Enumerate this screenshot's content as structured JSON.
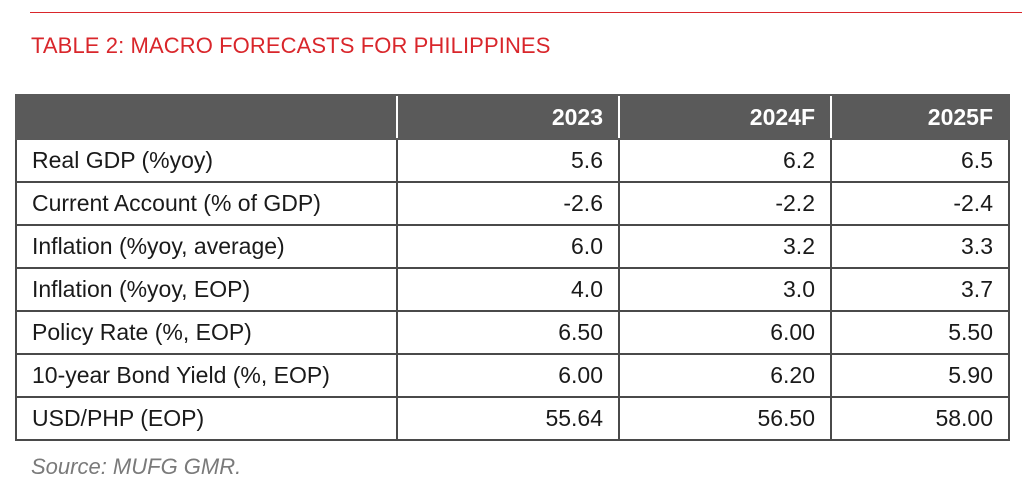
{
  "document": {
    "title": "TABLE 2: MACRO FORECASTS FOR PHILIPPINES",
    "source": "Source: MUFG GMR.",
    "accent_color": "#d9262b",
    "header_bg_color": "#5a5a5a"
  },
  "table": {
    "header": {
      "label": "",
      "years": [
        "2023",
        "2024F",
        "2025F"
      ]
    },
    "rows": [
      {
        "label": "Real GDP (%yoy)",
        "values": [
          "5.6",
          "6.2",
          "6.5"
        ]
      },
      {
        "label": "Current Account (% of GDP)",
        "values": [
          "-2.6",
          "-2.2",
          "-2.4"
        ]
      },
      {
        "label": "Inflation (%yoy, average)",
        "values": [
          "6.0",
          "3.2",
          "3.3"
        ]
      },
      {
        "label": "Inflation (%yoy, EOP)",
        "values": [
          "4.0",
          "3.0",
          "3.7"
        ]
      },
      {
        "label": "Policy Rate (%, EOP)",
        "values": [
          "6.50",
          "6.00",
          "5.50"
        ]
      },
      {
        "label": "10-year Bond Yield (%, EOP)",
        "values": [
          "6.00",
          "6.20",
          "5.90"
        ]
      },
      {
        "label": "USD/PHP (EOP)",
        "values": [
          "55.64",
          "56.50",
          "58.00"
        ]
      }
    ]
  }
}
